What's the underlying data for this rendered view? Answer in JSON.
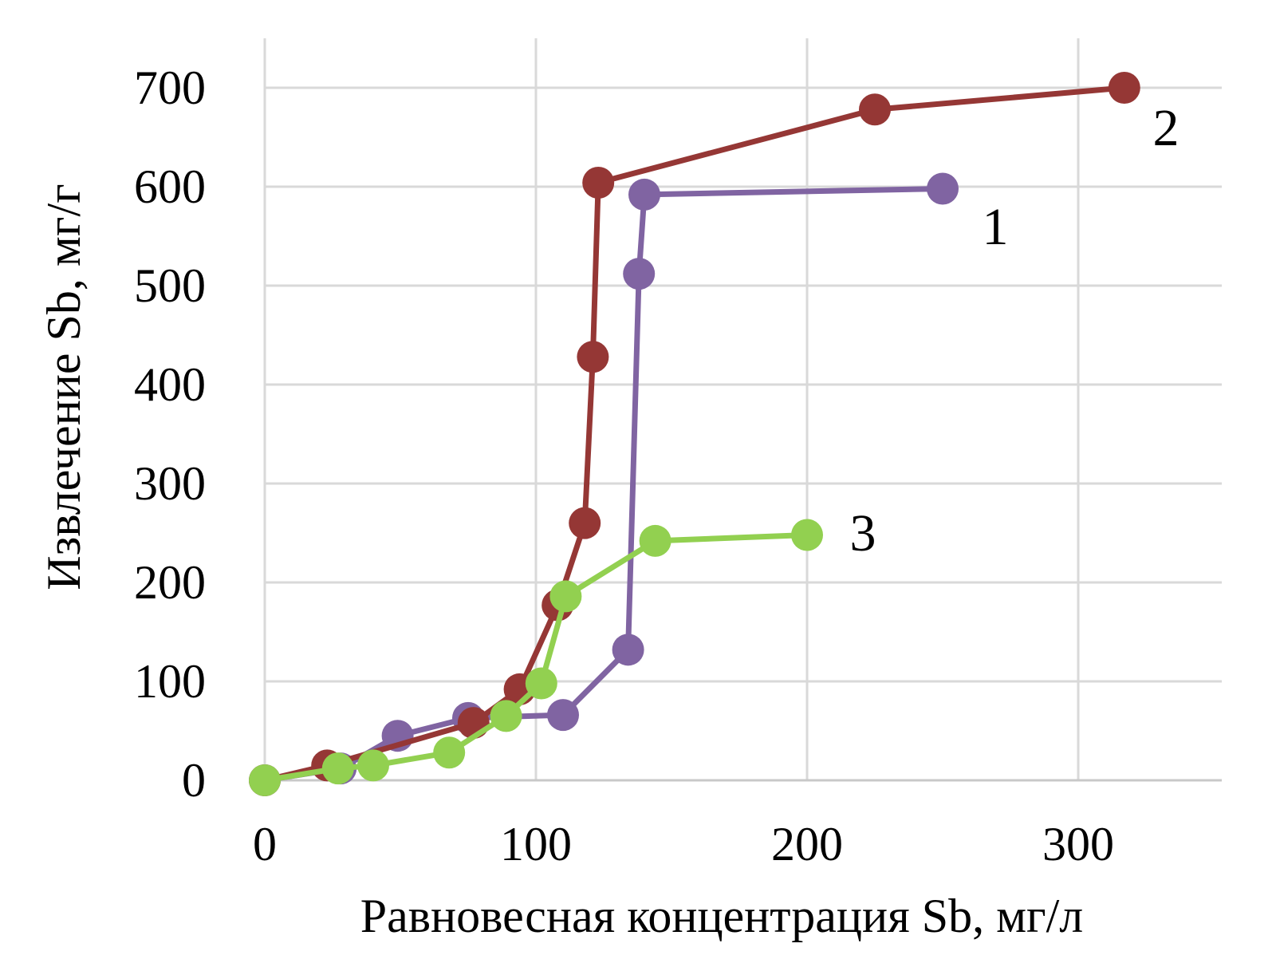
{
  "chart_data": {
    "type": "line",
    "xlabel": "Равновесная концентрация Sb, мг/л",
    "ylabel": "Извлечение Sb, мг/г",
    "xlim": [
      0,
      350
    ],
    "ylim": [
      0,
      700
    ],
    "x_ticks": [
      0,
      100,
      200,
      300
    ],
    "y_ticks": [
      0,
      100,
      200,
      300,
      400,
      500,
      600,
      700
    ],
    "x_tick_labels": [
      "0",
      "100",
      "200",
      "300"
    ],
    "y_tick_labels": [
      "0",
      "100",
      "200",
      "300",
      "400",
      "500",
      "600",
      "700"
    ],
    "grid": true,
    "legend": "none",
    "series": [
      {
        "label": "1",
        "color": "#8064a2",
        "x": [
          0,
          28,
          49,
          75,
          110,
          134,
          138,
          140,
          250
        ],
        "y": [
          0,
          12,
          45,
          63,
          66,
          132,
          512,
          592,
          598
        ]
      },
      {
        "label": "2",
        "color": "#953735",
        "x": [
          0,
          23,
          77,
          94,
          108,
          118,
          121,
          123,
          225,
          317
        ],
        "y": [
          0,
          15,
          58,
          92,
          177,
          260,
          428,
          604,
          678,
          700
        ]
      },
      {
        "label": "3",
        "color": "#92d050",
        "x": [
          0,
          27,
          40,
          68,
          89,
          102,
          111,
          144,
          200
        ],
        "y": [
          0,
          12,
          15,
          28,
          65,
          98,
          186,
          242,
          248
        ]
      }
    ]
  }
}
